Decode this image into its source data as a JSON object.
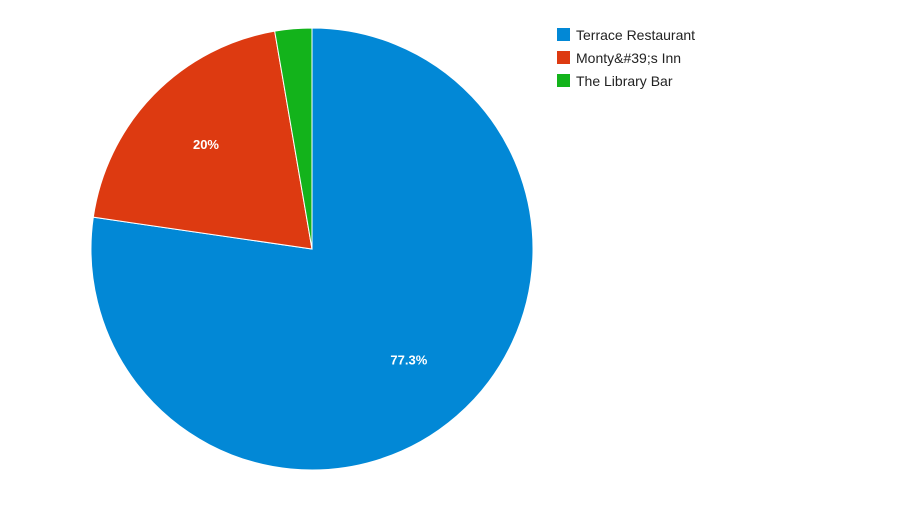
{
  "chart_data": {
    "type": "pie",
    "slices": [
      {
        "label": "Terrace Restaurant",
        "value": 77.3,
        "display": "77.3%",
        "color": "#0288d6"
      },
      {
        "label": "Monty&#39;s Inn",
        "value": 20.0,
        "display": "20%",
        "color": "#dd3a11"
      },
      {
        "label": "The Library Bar",
        "value": 2.7,
        "display": "",
        "color": "#13b31b"
      }
    ],
    "legend_position": "top-right"
  }
}
